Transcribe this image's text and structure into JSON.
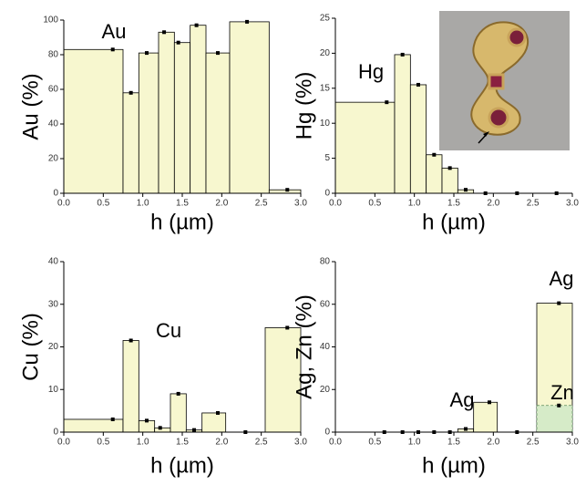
{
  "chart_data": [
    {
      "type": "step",
      "x_label": "h (µm)",
      "y_label": "Au (%)",
      "xlim": [
        0,
        3
      ],
      "xticks": [
        {
          "value": 0,
          "label": "0.0"
        },
        {
          "value": 0.5,
          "label": "0.5"
        },
        {
          "value": 1,
          "label": "1.0"
        },
        {
          "value": 1.5,
          "label": "1.5"
        },
        {
          "value": 2,
          "label": "2.0"
        },
        {
          "value": 2.5,
          "label": "2.5"
        },
        {
          "value": 3,
          "label": "3.0"
        }
      ],
      "ylim": [
        0,
        100
      ],
      "yticks": [
        0,
        20,
        40,
        60,
        80,
        100
      ],
      "series": [
        {
          "name": "Au",
          "color": "#f7f7cf",
          "bins": [
            0,
            0.75,
            0.95,
            1.2,
            1.4,
            1.6,
            1.8,
            2.1,
            2.6,
            3.0
          ],
          "x": [
            0.62,
            0.85,
            1.05,
            1.27,
            1.45,
            1.68,
            1.95,
            2.32,
            2.83
          ],
          "values": [
            83,
            58,
            81,
            93,
            87,
            97,
            81,
            99,
            2
          ]
        }
      ]
    },
    {
      "type": "step",
      "x_label": "h (µm)",
      "y_label": "Hg (%)",
      "xlim": [
        0,
        3
      ],
      "xticks": [
        {
          "value": 0,
          "label": "0.0"
        },
        {
          "value": 0.5,
          "label": "0.5"
        },
        {
          "value": 1,
          "label": "1.0"
        },
        {
          "value": 1.5,
          "label": "1.5"
        },
        {
          "value": 2,
          "label": "2.0"
        },
        {
          "value": 2.5,
          "label": "2.5"
        },
        {
          "value": 3,
          "label": "3.0"
        }
      ],
      "ylim": [
        0,
        25
      ],
      "yticks": [
        0,
        5,
        10,
        15,
        20,
        25
      ],
      "series": [
        {
          "name": "Hg",
          "color": "#f7f7cf",
          "bins": [
            0,
            0.75,
            0.95,
            1.15,
            1.35,
            1.55,
            1.75,
            2.1,
            2.6,
            3.0
          ],
          "x": [
            0.65,
            0.85,
            1.05,
            1.25,
            1.45,
            1.65,
            1.9,
            2.3,
            2.8
          ],
          "values": [
            13,
            19.8,
            15.5,
            5.5,
            3.6,
            0.5,
            0,
            0,
            0
          ]
        }
      ]
    },
    {
      "type": "step",
      "x_label": "h (µm)",
      "y_label": "Cu (%)",
      "xlim": [
        0,
        3
      ],
      "xticks": [
        {
          "value": 0,
          "label": "0.0"
        },
        {
          "value": 0.5,
          "label": "0.5"
        },
        {
          "value": 1,
          "label": "1.0"
        },
        {
          "value": 1.5,
          "label": "1.5"
        },
        {
          "value": 2,
          "label": "2.0"
        },
        {
          "value": 2.5,
          "label": "2.5"
        },
        {
          "value": 3,
          "label": "3.0"
        }
      ],
      "ylim": [
        0,
        40
      ],
      "yticks": [
        0,
        10,
        20,
        30,
        40
      ],
      "series": [
        {
          "name": "Cu",
          "color": "#f7f7cf",
          "bins": [
            0,
            0.75,
            0.95,
            1.15,
            1.35,
            1.55,
            1.75,
            2.05,
            2.55,
            3.0
          ],
          "x": [
            0.62,
            0.85,
            1.05,
            1.22,
            1.45,
            1.65,
            1.95,
            2.3,
            2.83
          ],
          "values": [
            3,
            21.5,
            2.7,
            1,
            9,
            0.5,
            4.5,
            0,
            24.5
          ]
        }
      ]
    },
    {
      "type": "step",
      "x_label": "h (µm)",
      "y_label": "Ag, Zn (%)",
      "annotations": [
        "Ag"
      ],
      "xlim": [
        0,
        3
      ],
      "xticks": [
        {
          "value": 0,
          "label": "0.0"
        },
        {
          "value": 0.5,
          "label": "0.5"
        },
        {
          "value": 1,
          "label": "1.0"
        },
        {
          "value": 1.5,
          "label": "1.5"
        },
        {
          "value": 2,
          "label": "2.0"
        },
        {
          "value": 2.5,
          "label": "2.5"
        },
        {
          "value": 3,
          "label": "3.0"
        }
      ],
      "ylim": [
        0,
        80
      ],
      "yticks": [
        0,
        20,
        40,
        60,
        80
      ],
      "series": [
        {
          "name": "Ag",
          "color": "#f7f7cf",
          "bins": [
            0,
            0.75,
            0.95,
            1.15,
            1.35,
            1.55,
            1.75,
            2.05,
            2.55,
            3.0
          ],
          "x": [
            0.62,
            0.85,
            1.05,
            1.25,
            1.45,
            1.65,
            1.95,
            2.3,
            2.83
          ],
          "values": [
            0,
            0,
            0,
            0,
            0,
            1.5,
            14,
            0,
            60.5
          ]
        },
        {
          "name": "Zn",
          "color": "#d6ebc8",
          "dashed": true,
          "bins": [
            2.55,
            3.0
          ],
          "x": [
            2.83
          ],
          "values": [
            12.5
          ]
        }
      ]
    }
  ]
}
